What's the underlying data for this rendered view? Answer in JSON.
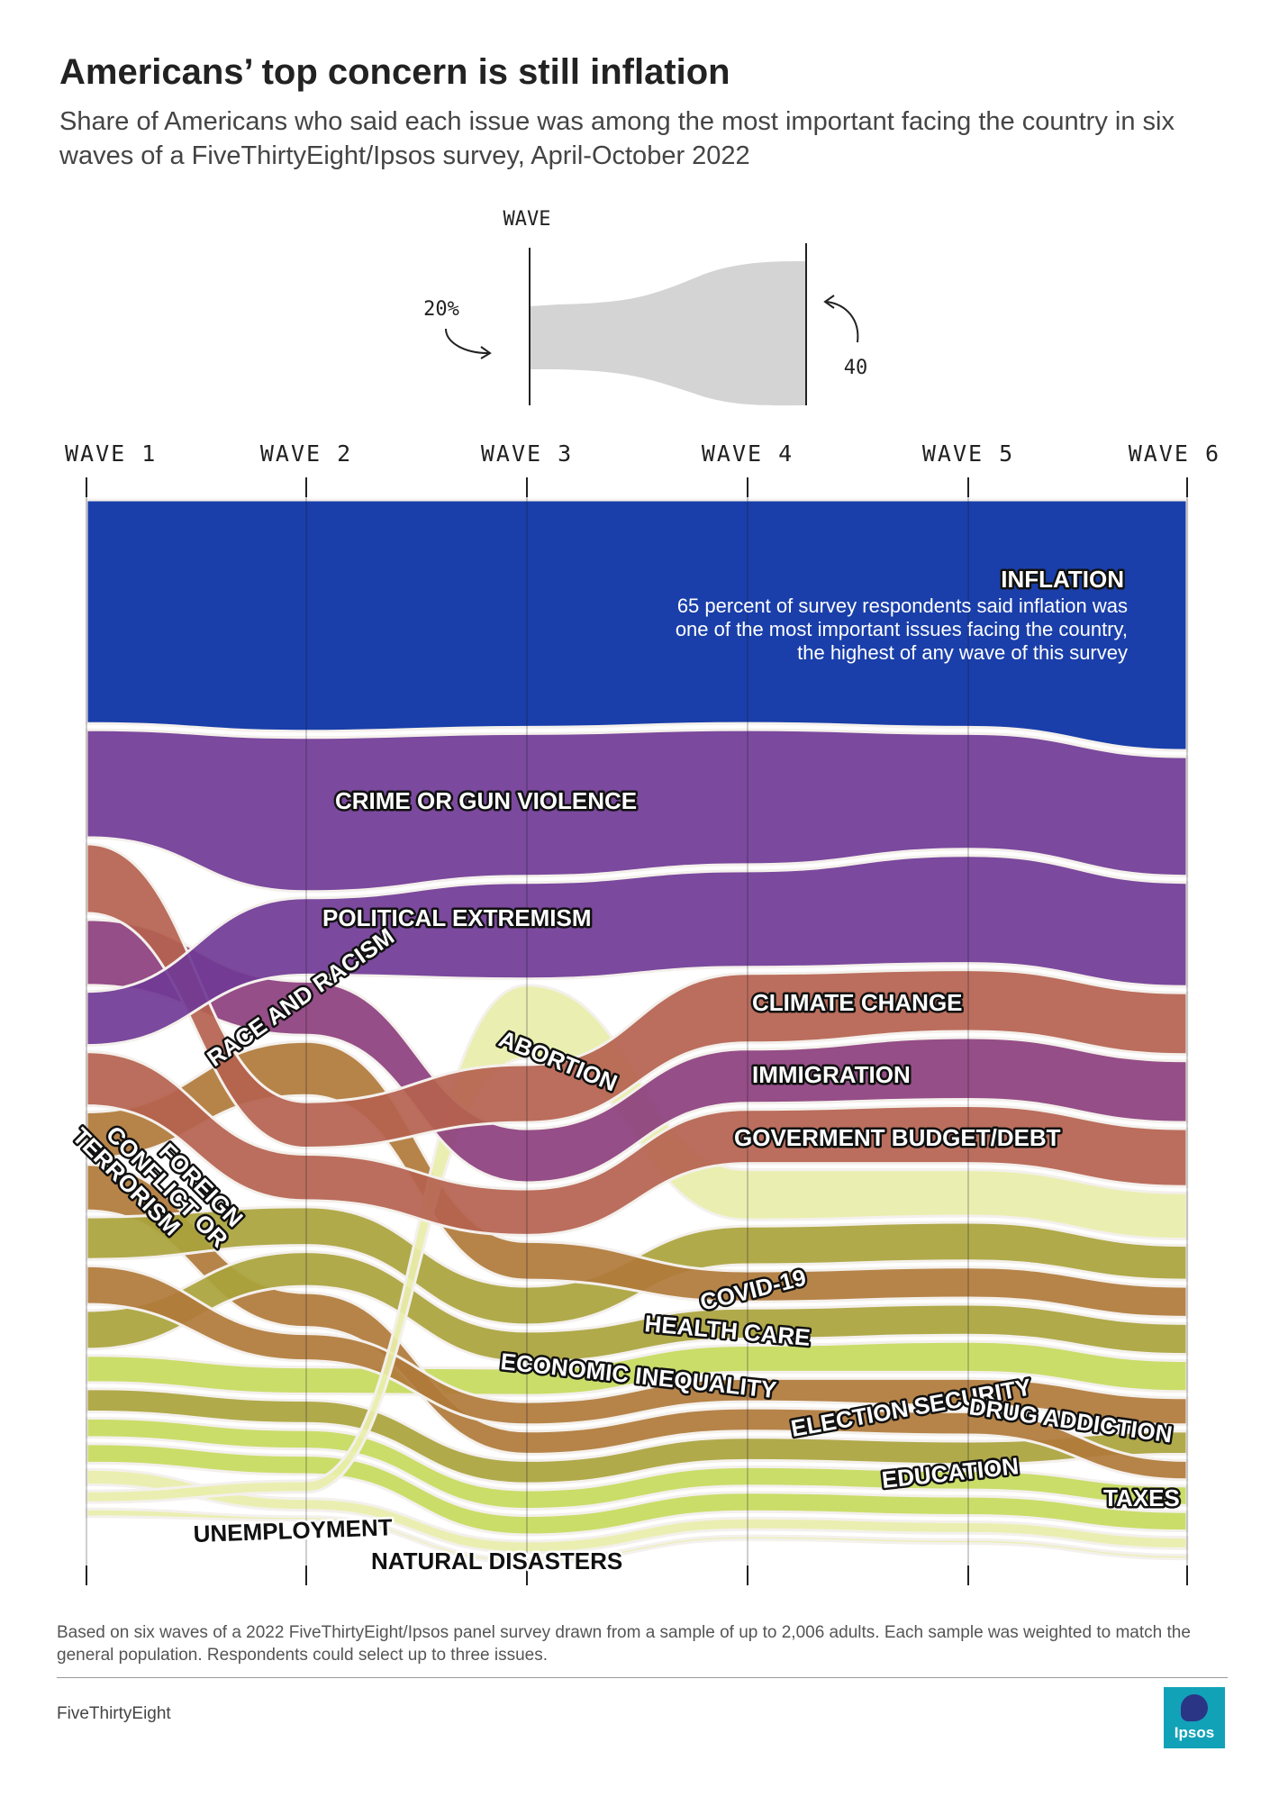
{
  "header": {
    "title": "Americans’ top concern is still inflation",
    "subtitle": "Share of Americans who said each issue was among the most important facing the country in six waves of a FiveThirtyEight/Ipsos survey, April-October 2022"
  },
  "key": {
    "label": "WAVE",
    "low": "20%",
    "high": "40"
  },
  "colors": {
    "inflation": "#1a3faa",
    "purple": "#703a95",
    "plum": "#8c3f7d",
    "brown": "#b5624f",
    "ochre": "#b07a3a",
    "olive": "#a9a33c",
    "lime": "#c6da5c",
    "pale": "#e8eeaa",
    "key_shape": "#d4d4d4"
  },
  "chart_data": {
    "type": "area",
    "note": "Bump/stream chart: band thickness encodes share of respondents; order encodes rank.",
    "waves": [
      "WAVE 1",
      "WAVE 2",
      "WAVE 3",
      "WAVE 4",
      "WAVE 5",
      "WAVE 6"
    ],
    "series": [
      {
        "name": "INFLATION",
        "values": [
          58,
          60,
          59,
          58,
          59,
          65
        ]
      },
      {
        "name": "CRIME OR GUN VIOLENCE",
        "values": [
          28,
          40,
          37,
          35,
          30,
          31
        ]
      },
      {
        "name": "POLITICAL EXTREMISM",
        "values": [
          14,
          20,
          25,
          25,
          28,
          27
        ]
      },
      {
        "name": "CLIMATE CHANGE",
        "values": [
          18,
          12,
          15,
          18,
          16,
          16
        ]
      },
      {
        "name": "IMMIGRATION",
        "values": [
          17,
          14,
          14,
          14,
          16,
          16
        ]
      },
      {
        "name": "GOVERMENT BUDGET/DEBT",
        "values": [
          14,
          12,
          12,
          14,
          15,
          15
        ]
      },
      {
        "name": "ABORTION",
        "values": [
          3,
          3,
          19,
          13,
          12,
          12
        ]
      },
      {
        "name": "RACE AND RACISM",
        "values": [
          12,
          14,
          10,
          8,
          8,
          8
        ]
      },
      {
        "name": "COVID-19",
        "values": [
          10,
          7,
          6,
          6,
          7,
          7
        ]
      },
      {
        "name": "HEALTH CARE",
        "values": [
          11,
          10,
          10,
          10,
          10,
          9
        ]
      },
      {
        "name": "ECONOMIC INEQUALITY",
        "values": [
          10,
          9,
          8,
          8,
          8,
          8
        ]
      },
      {
        "name": "FOREIGN CONFLICT OR TERRORISM",
        "values": [
          12,
          9,
          6,
          6,
          6,
          5
        ]
      },
      {
        "name": "ELECTION SECURITY",
        "values": [
          7,
          7,
          7,
          7,
          8,
          8
        ]
      },
      {
        "name": "DRUG ADDICTION",
        "values": [
          6,
          6,
          6,
          6,
          6,
          6
        ]
      },
      {
        "name": "EDUCATION",
        "values": [
          5,
          5,
          5,
          5,
          5,
          5
        ]
      },
      {
        "name": "TAXES",
        "values": [
          5,
          5,
          5,
          5,
          5,
          5
        ]
      },
      {
        "name": "UNEMPLOYMENT",
        "values": [
          4,
          3,
          3,
          3,
          3,
          3
        ]
      },
      {
        "name": "NATURAL DISASTERS",
        "values": [
          2,
          1,
          1,
          1,
          1,
          1
        ]
      }
    ],
    "annotation": {
      "series": "INFLATION",
      "lines": [
        "65 percent of survey respondents said inflation was",
        "one of the most important issues facing the country,",
        "the highest of any wave of this survey"
      ]
    }
  },
  "footer": {
    "note": "Based on six waves of a 2022 FiveThirtyEight/Ipsos panel survey drawn from a sample of up to 2,006 adults. Each sample was weighted to match the general population. Respondents could select up to three issues.",
    "source": "FiveThirtyEight",
    "logo_text": "Ipsos"
  }
}
